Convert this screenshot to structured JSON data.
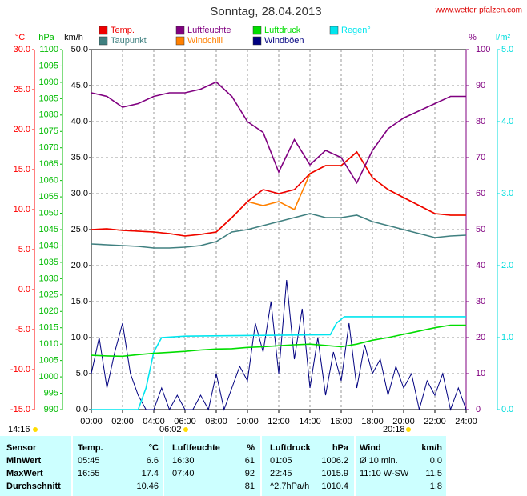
{
  "chart_data": {
    "type": "line",
    "title": "Sonntag, 28.04.2013",
    "source": "www.wetter-pfalzen.com",
    "xlim": [
      0,
      24
    ],
    "xticks": [
      {
        "value": 0,
        "label": "00:00"
      },
      {
        "value": 2,
        "label": "02:00"
      },
      {
        "value": 4,
        "label": "04:00"
      },
      {
        "value": 6,
        "label": "06:00"
      },
      {
        "value": 8,
        "label": "08:00"
      },
      {
        "value": 10,
        "label": "10:00"
      },
      {
        "value": 12,
        "label": "12:00"
      },
      {
        "value": 14,
        "label": "14:00"
      },
      {
        "value": 16,
        "label": "16:00"
      },
      {
        "value": 18,
        "label": "18:00"
      },
      {
        "value": 20,
        "label": "20:00"
      },
      {
        "value": 22,
        "label": "22:00"
      },
      {
        "value": 24,
        "label": "24:00"
      }
    ],
    "grid": true,
    "axes": {
      "temp": {
        "label": "°C",
        "color": "#ff0000",
        "side": "left",
        "lim": [
          -15,
          30
        ],
        "ticks": [
          {
            "value": -15,
            "label": "-15.0"
          },
          {
            "value": -10,
            "label": "-10.0"
          },
          {
            "value": -5,
            "label": "-5.0"
          },
          {
            "value": 0,
            "label": "0.0"
          },
          {
            "value": 5,
            "label": "5.0"
          },
          {
            "value": 10,
            "label": "10.0"
          },
          {
            "value": 15,
            "label": "15.0"
          },
          {
            "value": 20,
            "label": "20.0"
          },
          {
            "value": 25,
            "label": "25.0"
          },
          {
            "value": 30,
            "label": "30.0"
          }
        ]
      },
      "press": {
        "label": "hPa",
        "color": "#00bb00",
        "side": "left",
        "lim": [
          990,
          1100
        ],
        "ticks": [
          990,
          995,
          1000,
          1005,
          1010,
          1015,
          1020,
          1025,
          1030,
          1035,
          1040,
          1045,
          1050,
          1055,
          1060,
          1065,
          1070,
          1075,
          1080,
          1085,
          1090,
          1095,
          1100
        ]
      },
      "wind": {
        "label": "km/h",
        "color": "#000000",
        "side": "left",
        "lim": [
          0,
          50
        ],
        "ticks": [
          {
            "value": 0,
            "label": "0.0"
          },
          {
            "value": 5,
            "label": "5.0"
          },
          {
            "value": 10,
            "label": "10.0"
          },
          {
            "value": 15,
            "label": "15.0"
          },
          {
            "value": 20,
            "label": "20.0"
          },
          {
            "value": 25,
            "label": "25.0"
          },
          {
            "value": 30,
            "label": "30.0"
          },
          {
            "value": 35,
            "label": "35.0"
          },
          {
            "value": 40,
            "label": "40.0"
          },
          {
            "value": 45,
            "label": "45.0"
          },
          {
            "value": 50,
            "label": "50.0"
          }
        ]
      },
      "hum": {
        "label": "%",
        "color": "#800080",
        "side": "right",
        "lim": [
          0,
          100
        ],
        "ticks": [
          0,
          10,
          20,
          30,
          40,
          50,
          60,
          70,
          80,
          90,
          100
        ]
      },
      "rain": {
        "label": "l/m²",
        "color": "#00dddd",
        "side": "right",
        "lim": [
          0,
          5
        ],
        "ticks": [
          {
            "value": 0,
            "label": "0.0"
          },
          {
            "value": 1,
            "label": "1.0"
          },
          {
            "value": 2,
            "label": "2.0"
          },
          {
            "value": 3,
            "label": "3.0"
          },
          {
            "value": 4,
            "label": "4.0"
          },
          {
            "value": 5,
            "label": "5.0"
          }
        ]
      }
    },
    "series": [
      {
        "name": "Temp.",
        "color": "#ee0000",
        "axis": "temp",
        "x": [
          0,
          1,
          2,
          3,
          4,
          5,
          6,
          7,
          8,
          9,
          10,
          11,
          12,
          13,
          14,
          15,
          16,
          17,
          18,
          19,
          20,
          21,
          22,
          23,
          24
        ],
        "values": [
          7.5,
          7.6,
          7.4,
          7.3,
          7.2,
          7.0,
          6.7,
          6.9,
          7.2,
          9.0,
          11.0,
          12.5,
          12.0,
          12.5,
          14.5,
          15.5,
          15.5,
          17.2,
          14.0,
          12.5,
          11.5,
          10.5,
          9.5,
          9.3,
          9.3
        ]
      },
      {
        "name": "Luftfeuchte",
        "color": "#800080",
        "axis": "hum",
        "x": [
          0,
          1,
          2,
          3,
          4,
          5,
          6,
          7,
          8,
          9,
          10,
          11,
          12,
          13,
          14,
          15,
          16,
          17,
          18,
          19,
          20,
          21,
          22,
          23,
          24
        ],
        "values": [
          88,
          87,
          84,
          85,
          87,
          88,
          88,
          89,
          91,
          87,
          80,
          77,
          66,
          75,
          68,
          72,
          70,
          63,
          72,
          78,
          81,
          83,
          85,
          87,
          87
        ]
      },
      {
        "name": "Luftdruck",
        "color": "#00dd00",
        "axis": "press",
        "x": [
          0,
          1,
          2,
          3,
          4,
          5,
          6,
          7,
          8,
          9,
          10,
          11,
          12,
          13,
          14,
          15,
          16,
          17,
          18,
          19,
          20,
          21,
          22,
          23,
          24
        ],
        "values": [
          1006.6,
          1006.4,
          1006.3,
          1006.8,
          1007.2,
          1007.5,
          1007.8,
          1008.2,
          1008.5,
          1008.6,
          1009.0,
          1009.2,
          1009.5,
          1009.8,
          1010.0,
          1009.6,
          1009.2,
          1010.0,
          1011.2,
          1012.0,
          1013.0,
          1014.0,
          1015.0,
          1015.8,
          1015.8
        ]
      },
      {
        "name": "Regen°",
        "color": "#00e5ee",
        "axis": "rain",
        "x": [
          0,
          3,
          3.5,
          4,
          4.5,
          6,
          15.3,
          15.7,
          16.2,
          24
        ],
        "values": [
          0,
          0,
          0.3,
          0.8,
          1.0,
          1.02,
          1.04,
          1.2,
          1.29,
          1.29
        ]
      },
      {
        "name": "Taupunkt",
        "color": "#408080",
        "axis": "temp",
        "x": [
          0,
          1,
          2,
          3,
          4,
          5,
          6,
          7,
          8,
          9,
          10,
          11,
          12,
          13,
          14,
          15,
          16,
          17,
          18,
          19,
          20,
          21,
          22,
          23,
          24
        ],
        "values": [
          5.7,
          5.6,
          5.5,
          5.4,
          5.2,
          5.2,
          5.3,
          5.5,
          6.0,
          7.2,
          7.5,
          8.0,
          8.5,
          9.0,
          9.5,
          9.0,
          9.0,
          9.3,
          8.5,
          8.0,
          7.5,
          7.0,
          6.5,
          6.7,
          6.8
        ]
      },
      {
        "name": "Windchill",
        "color": "#ff8000",
        "axis": "temp",
        "x": [
          0,
          1,
          2,
          3,
          4,
          5,
          6,
          7,
          8,
          9,
          10,
          11,
          12,
          13,
          14,
          15,
          16,
          17,
          18,
          19,
          20,
          21,
          22,
          23,
          24
        ],
        "values": [
          7.5,
          7.6,
          7.4,
          7.3,
          7.2,
          7.0,
          6.7,
          6.9,
          7.2,
          9.0,
          11.0,
          10.5,
          11.0,
          10.0,
          14.5,
          15.5,
          15.5,
          17.2,
          14.0,
          12.5,
          11.5,
          10.5,
          9.5,
          9.3,
          9.3
        ]
      },
      {
        "name": "Windböen",
        "color": "#000080",
        "axis": "wind",
        "x": [
          0,
          0.5,
          1,
          1.5,
          2,
          2.5,
          3,
          3.5,
          4,
          4.5,
          5,
          5.5,
          6,
          6.5,
          7,
          7.5,
          8,
          8.5,
          9,
          9.5,
          10,
          10.5,
          11,
          11.5,
          12,
          12.5,
          13,
          13.5,
          14,
          14.5,
          15,
          15.5,
          16,
          16.5,
          17,
          17.5,
          18,
          18.5,
          19,
          19.5,
          20,
          20.5,
          21,
          21.5,
          22,
          22.5,
          23,
          23.5,
          24
        ],
        "values": [
          5,
          10,
          3,
          8,
          12,
          5,
          2,
          0,
          0,
          3,
          0,
          2,
          0,
          0,
          2,
          0,
          5,
          0,
          3,
          6,
          4,
          12,
          8,
          15,
          5,
          18,
          7,
          14,
          3,
          10,
          2,
          8,
          4,
          12,
          3,
          9,
          5,
          7,
          2,
          6,
          3,
          5,
          0,
          4,
          2,
          5,
          0,
          3,
          0
        ]
      }
    ],
    "annotations": [
      "14:16",
      "06:02",
      "20:18"
    ]
  },
  "table": {
    "header": [
      "Sensor",
      "Temp.",
      "°C",
      "Luftfeuchte",
      "%",
      "Luftdruck",
      "hPa",
      "Wind",
      "km/h"
    ],
    "rows": [
      [
        "MinWert",
        "05:45",
        "6.6",
        "16:30",
        "61",
        "01:05",
        "1006.2",
        "Ø 10 min.",
        "0.0"
      ],
      [
        "MaxWert",
        "16:55",
        "17.4",
        "07:40",
        "92",
        "22:45",
        "1015.9",
        "11:10  W-SW",
        "11.5"
      ],
      [
        "Durchschnitt",
        null,
        "10.46",
        null,
        "81",
        "^2.7hPa/h",
        "1010.4",
        null,
        "1.8"
      ]
    ]
  }
}
